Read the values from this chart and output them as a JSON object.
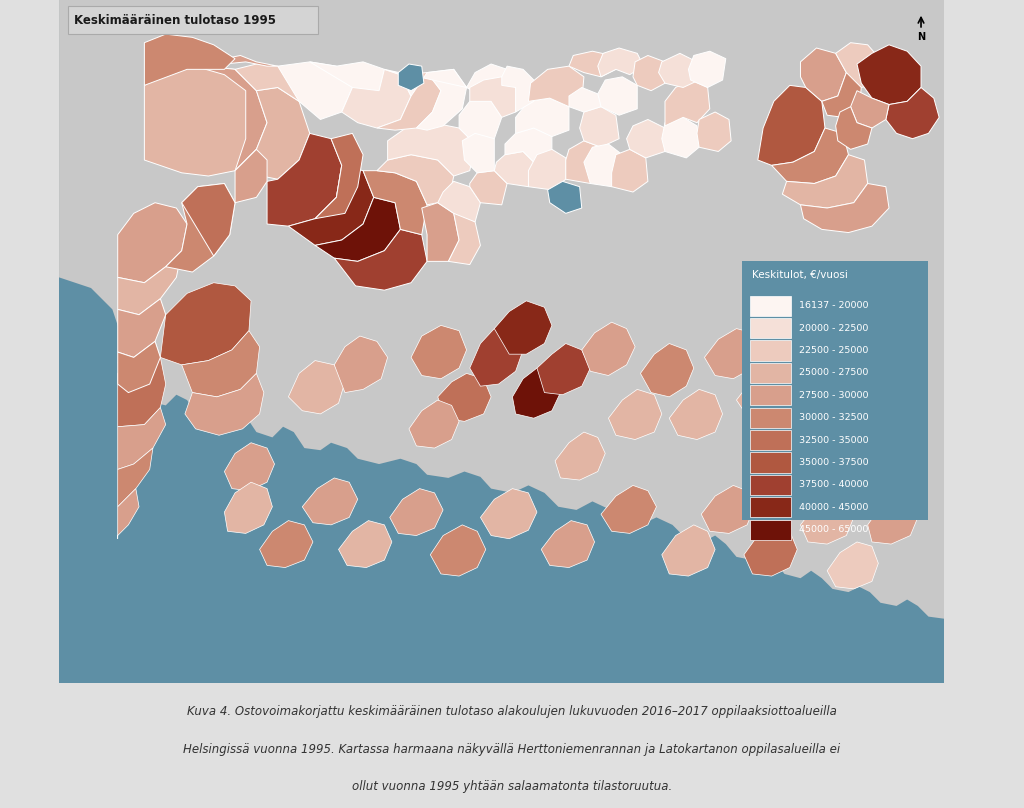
{
  "title": "Keskimääräinen tulotaso 1995",
  "map_bg_color": "#5e8fa5",
  "land_bg_color": "#c8c8c8",
  "legend_title": "Keskitulot, €/vuosi",
  "legend_items": [
    {
      "label": "16137 - 20000",
      "color": "#fdf5f2"
    },
    {
      "label": "20000 - 22500",
      "color": "#f5e0d8"
    },
    {
      "label": "22500 - 25000",
      "color": "#edcbbe"
    },
    {
      "label": "25000 - 27500",
      "color": "#e2b5a4"
    },
    {
      "label": "27500 - 30000",
      "color": "#d89f8c"
    },
    {
      "label": "30000 - 32500",
      "color": "#cc8870"
    },
    {
      "label": "32500 - 35000",
      "color": "#bf7058"
    },
    {
      "label": "35000 - 37500",
      "color": "#b05840"
    },
    {
      "label": "37500 - 40000",
      "color": "#a04030"
    },
    {
      "label": "40000 - 45000",
      "color": "#882818"
    },
    {
      "label": "45000 - 65000",
      "color": "#6e1208"
    }
  ],
  "caption_line1": "Kuva 4. Ostovoimakorjattu keskimääräinen tulotaso alakoulujen lukuvuoden 2016–2017 oppilaaksiottoalueilla",
  "caption_line2": "Helsingissä vuonna 1995. Kartassa harmaana näkyvällä Herttoniemenrannan ja Latokartanon oppilasalueilla ei",
  "caption_line3": "ollut vuonna 1995 yhtään salaamatonta tilastoruutua.",
  "outer_bg_color": "#e0e0e0",
  "legend_bg_color": "#5e8fa5",
  "title_bg_color": "#d4d4d4",
  "white_border": "#ffffff"
}
